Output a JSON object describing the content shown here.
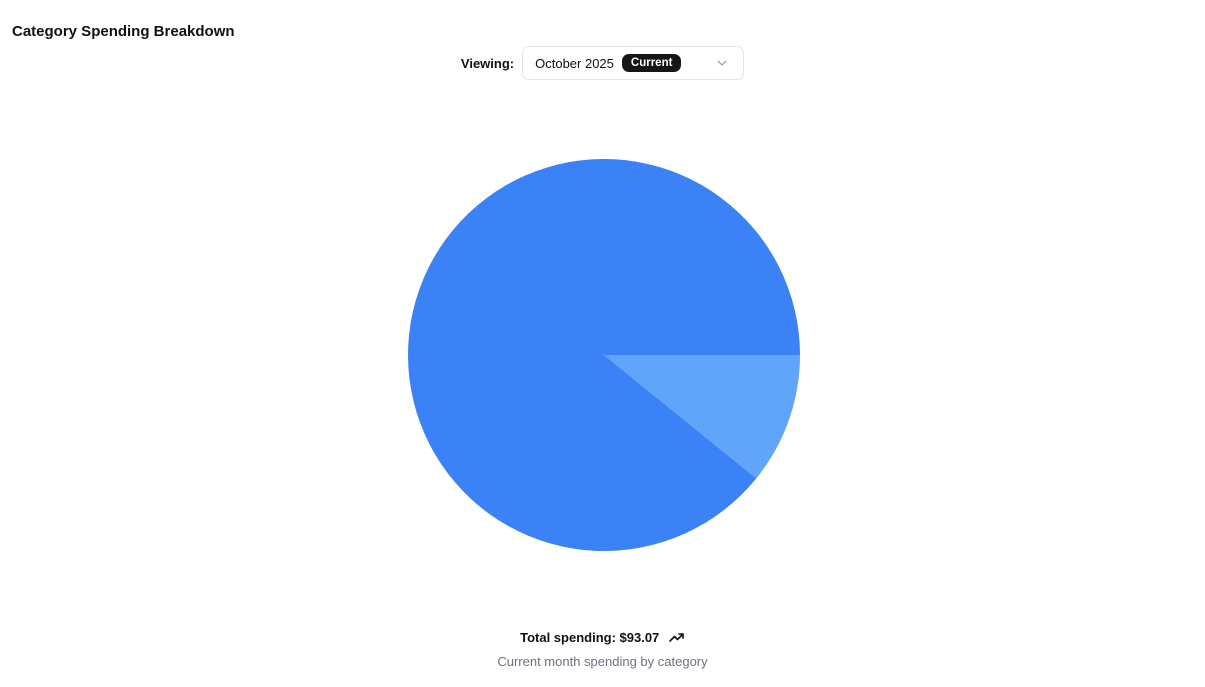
{
  "header": {
    "title": "Category Spending Breakdown"
  },
  "period_selector": {
    "label": "Viewing:",
    "selected": "October 2025",
    "badge": "Current",
    "icon": "chevron-down-icon"
  },
  "footer": {
    "total": "Total spending: $93.07",
    "trend_icon": "trending-up-icon",
    "caption": "Current month spending by category"
  },
  "chart_data": {
    "type": "pie",
    "total": 93.07,
    "slices": [
      {
        "value": 82.99,
        "color": "#3b82f6"
      },
      {
        "value": 10.08,
        "color": "#60a5fa"
      }
    ],
    "start_angle_deg": 0,
    "direction": "counterclockwise",
    "legend": "none"
  }
}
